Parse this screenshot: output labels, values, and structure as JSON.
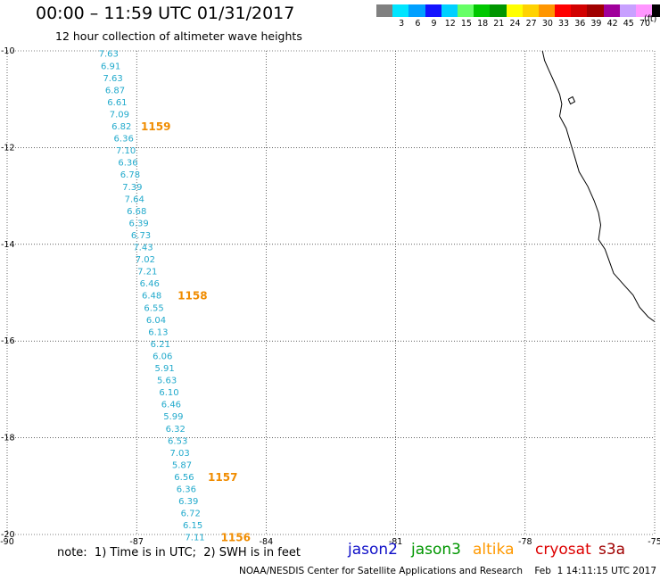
{
  "title": "00:00 – 11:59 UTC 01/31/2017",
  "subtitle": "12 hour collection of altimeter wave heights",
  "colorbar": {
    "unit": "(ft)",
    "cells": [
      {
        "color": "#808080",
        "label": ""
      },
      {
        "color": "#00e5ff",
        "label": "3"
      },
      {
        "color": "#00a0ff",
        "label": "6"
      },
      {
        "color": "#1414ff",
        "label": "9"
      },
      {
        "color": "#00d0ff",
        "label": "12"
      },
      {
        "color": "#66ff66",
        "label": "15"
      },
      {
        "color": "#00c800",
        "label": "18"
      },
      {
        "color": "#009600",
        "label": "21"
      },
      {
        "color": "#ffff00",
        "label": "24"
      },
      {
        "color": "#ffd200",
        "label": "27"
      },
      {
        "color": "#ff9600",
        "label": "30"
      },
      {
        "color": "#ff0000",
        "label": "33"
      },
      {
        "color": "#d20000",
        "label": "36"
      },
      {
        "color": "#a00000",
        "label": "39"
      },
      {
        "color": "#a0009b",
        "label": "42"
      },
      {
        "color": "#c8a0ff",
        "label": "45"
      },
      {
        "color": "#ff96ff",
        "label": "70"
      },
      {
        "color": "#000000",
        "label": ""
      }
    ]
  },
  "map": {
    "lon_range": [
      -90,
      -75
    ],
    "lat_range": [
      -20,
      -10
    ],
    "lon_ticks": [
      "-90",
      "-87",
      "-84",
      "-81",
      "-78",
      "-75"
    ],
    "lat_ticks": [
      "-10",
      "-12",
      "-14",
      "-16",
      "-18",
      "-20"
    ],
    "coast_color": "#000000",
    "track_color": "#22aacc",
    "time_color": "#f08c00"
  },
  "track": {
    "wave_heights": [
      {
        "lon": -87.65,
        "lat": -10.05,
        "value": "7.63"
      },
      {
        "lon": -87.6,
        "lat": -10.3,
        "value": "6.91"
      },
      {
        "lon": -87.55,
        "lat": -10.55,
        "value": "7.63"
      },
      {
        "lon": -87.5,
        "lat": -10.8,
        "value": "6.87"
      },
      {
        "lon": -87.45,
        "lat": -11.05,
        "value": "6.61"
      },
      {
        "lon": -87.4,
        "lat": -11.3,
        "value": "7.09"
      },
      {
        "lon": -87.35,
        "lat": -11.55,
        "value": "6.82"
      },
      {
        "lon": -87.3,
        "lat": -11.8,
        "value": "6.36"
      },
      {
        "lon": -87.25,
        "lat": -12.05,
        "value": "7.10"
      },
      {
        "lon": -87.2,
        "lat": -12.3,
        "value": "6.36"
      },
      {
        "lon": -87.15,
        "lat": -12.55,
        "value": "6.78"
      },
      {
        "lon": -87.1,
        "lat": -12.8,
        "value": "7.39"
      },
      {
        "lon": -87.05,
        "lat": -13.05,
        "value": "7.64"
      },
      {
        "lon": -87.0,
        "lat": -13.3,
        "value": "6.68"
      },
      {
        "lon": -86.95,
        "lat": -13.55,
        "value": "6.39"
      },
      {
        "lon": -86.9,
        "lat": -13.8,
        "value": "6.73"
      },
      {
        "lon": -86.85,
        "lat": -14.05,
        "value": "7.43"
      },
      {
        "lon": -86.8,
        "lat": -14.3,
        "value": "7.02"
      },
      {
        "lon": -86.75,
        "lat": -14.55,
        "value": "7.21"
      },
      {
        "lon": -86.7,
        "lat": -14.8,
        "value": "6.46"
      },
      {
        "lon": -86.65,
        "lat": -15.05,
        "value": "6.48"
      },
      {
        "lon": -86.6,
        "lat": -15.3,
        "value": "6.55"
      },
      {
        "lon": -86.55,
        "lat": -15.55,
        "value": "6.04"
      },
      {
        "lon": -86.5,
        "lat": -15.8,
        "value": "6.13"
      },
      {
        "lon": -86.45,
        "lat": -16.05,
        "value": "6.21"
      },
      {
        "lon": -86.4,
        "lat": -16.3,
        "value": "6.06"
      },
      {
        "lon": -86.35,
        "lat": -16.55,
        "value": "5.91"
      },
      {
        "lon": -86.3,
        "lat": -16.8,
        "value": "5.63"
      },
      {
        "lon": -86.25,
        "lat": -17.05,
        "value": "6.10"
      },
      {
        "lon": -86.2,
        "lat": -17.3,
        "value": "6.46"
      },
      {
        "lon": -86.15,
        "lat": -17.55,
        "value": "5.99"
      },
      {
        "lon": -86.1,
        "lat": -17.8,
        "value": "6.32"
      },
      {
        "lon": -86.05,
        "lat": -18.05,
        "value": "6.53"
      },
      {
        "lon": -86.0,
        "lat": -18.3,
        "value": "7.03"
      },
      {
        "lon": -85.95,
        "lat": -18.55,
        "value": "5.87"
      },
      {
        "lon": -85.9,
        "lat": -18.8,
        "value": "6.56"
      },
      {
        "lon": -85.85,
        "lat": -19.05,
        "value": "6.36"
      },
      {
        "lon": -85.8,
        "lat": -19.3,
        "value": "6.39"
      },
      {
        "lon": -85.75,
        "lat": -19.55,
        "value": "6.72"
      },
      {
        "lon": -85.7,
        "lat": -19.8,
        "value": "6.15"
      },
      {
        "lon": -85.65,
        "lat": -20.05,
        "value": "7.11"
      }
    ],
    "time_labels": [
      {
        "lon": -86.9,
        "lat": -11.55,
        "value": "1159"
      },
      {
        "lon": -86.05,
        "lat": -15.05,
        "value": "1158"
      },
      {
        "lon": -85.35,
        "lat": -18.8,
        "value": "1157"
      },
      {
        "lon": -85.05,
        "lat": -20.05,
        "value": "1156"
      }
    ]
  },
  "coastline": [
    [
      -77.6,
      -10.0
    ],
    [
      -77.55,
      -10.2
    ],
    [
      -77.45,
      -10.4
    ],
    [
      -77.35,
      -10.6
    ],
    [
      -77.2,
      -10.9
    ],
    [
      -77.15,
      -11.1
    ],
    [
      -77.2,
      -11.35
    ],
    [
      -77.05,
      -11.6
    ],
    [
      -76.95,
      -11.9
    ],
    [
      -76.85,
      -12.2
    ],
    [
      -76.75,
      -12.5
    ],
    [
      -76.55,
      -12.8
    ],
    [
      -76.4,
      -13.1
    ],
    [
      -76.3,
      -13.35
    ],
    [
      -76.25,
      -13.6
    ],
    [
      -76.3,
      -13.9
    ],
    [
      -76.15,
      -14.1
    ],
    [
      -76.05,
      -14.35
    ],
    [
      -75.95,
      -14.6
    ],
    [
      -75.7,
      -14.85
    ],
    [
      -75.5,
      -15.05
    ],
    [
      -75.35,
      -15.3
    ],
    [
      -75.15,
      -15.5
    ],
    [
      -75.0,
      -15.6
    ]
  ],
  "island": [
    [
      -77.0,
      -11.0
    ],
    [
      -76.9,
      -10.95
    ],
    [
      -76.85,
      -11.05
    ],
    [
      -76.95,
      -11.1
    ],
    [
      -77.0,
      -11.0
    ]
  ],
  "note": "note:  1) Time is in UTC;  2) SWH is in feet",
  "satellites": [
    {
      "name": "jason2",
      "color": "#1010c8"
    },
    {
      "name": "jason3",
      "color": "#009600"
    },
    {
      "name": "altika",
      "color": "#ff9900"
    },
    {
      "name": "cryosat",
      "color": "#dd0000"
    },
    {
      "name": "s3a",
      "color": "#a00000"
    }
  ],
  "footer": "NOAA/NESDIS Center for Satellite Applications and Research    Feb  1 14:11:15 UTC 2017"
}
